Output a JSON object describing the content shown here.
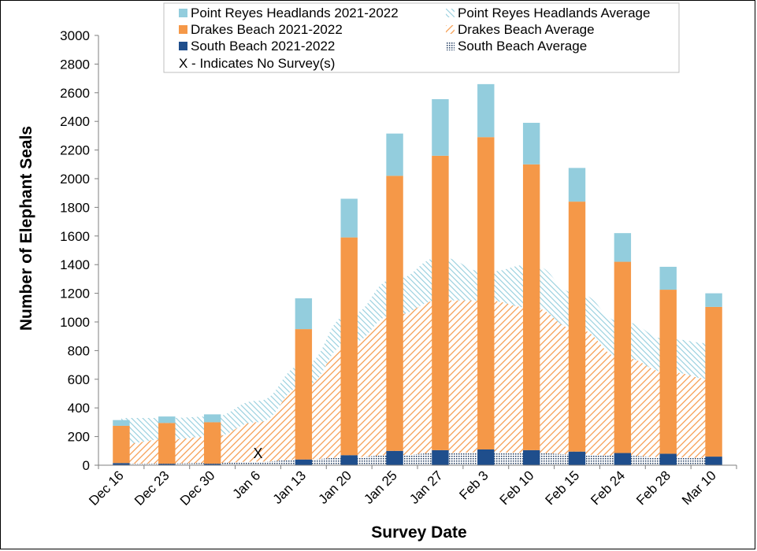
{
  "chart_data": {
    "type": "bar",
    "title": "",
    "xlabel": "Survey Date",
    "ylabel": "Number of Elephant Seals",
    "ylim": [
      0,
      3000
    ],
    "yticks": [
      0,
      200,
      400,
      600,
      800,
      1000,
      1200,
      1400,
      1600,
      1800,
      2000,
      2200,
      2400,
      2600,
      2800,
      3000
    ],
    "categories": [
      "Dec 16",
      "Dec 23",
      "Dec 30",
      "Jan 6",
      "Jan 13",
      "Jan 20",
      "Jan 25",
      "Jan 27",
      "Feb 3",
      "Feb 10",
      "Feb 15",
      "Feb 24",
      "Feb 28",
      "Mar 10"
    ],
    "stacked_series": [
      {
        "name": "South Beach 2021-2022",
        "color": "#1f4e8c",
        "values": [
          15,
          10,
          10,
          null,
          40,
          70,
          100,
          105,
          110,
          105,
          95,
          85,
          80,
          60
        ]
      },
      {
        "name": "Drakes Beach 2021-2022",
        "color": "#f59848",
        "values": [
          260,
          285,
          290,
          null,
          910,
          1520,
          1920,
          2055,
          2180,
          1995,
          1745,
          1335,
          1145,
          1045
        ]
      },
      {
        "name": "Point Reyes Headlands 2021-2022",
        "color": "#93cddd",
        "values": [
          40,
          45,
          55,
          null,
          215,
          270,
          295,
          395,
          370,
          290,
          235,
          200,
          160,
          95
        ]
      }
    ],
    "average_series": [
      {
        "name": "South Beach Average",
        "color": "#1f3a5f",
        "pattern": "dots",
        "values": [
          10,
          12,
          15,
          25,
          40,
          55,
          70,
          85,
          90,
          85,
          75,
          65,
          55,
          50
        ]
      },
      {
        "name": "Drakes Beach Average",
        "color": "#f59848",
        "pattern": "diagonal",
        "values": [
          150,
          180,
          200,
          300,
          550,
          850,
          1050,
          1150,
          1150,
          1100,
          950,
          750,
          650,
          600
        ]
      },
      {
        "name": "Point Reyes Headlands Average",
        "color": "#93cddd",
        "pattern": "diagonal",
        "values": [
          330,
          330,
          340,
          450,
          700,
          1050,
          1300,
          1450,
          1350,
          1400,
          1200,
          1000,
          880,
          850
        ]
      }
    ],
    "no_survey": [
      {
        "category": "Jan 6",
        "marker": "X"
      }
    ],
    "legend": {
      "placement": "top",
      "entries": [
        "Point Reyes Headlands 2021-2022",
        "Point Reyes Headlands Average",
        "Drakes Beach 2021-2022",
        "Drakes Beach Average",
        "South Beach 2021-2022",
        "South Beach Average",
        "X - Indicates No Survey(s)"
      ]
    }
  }
}
